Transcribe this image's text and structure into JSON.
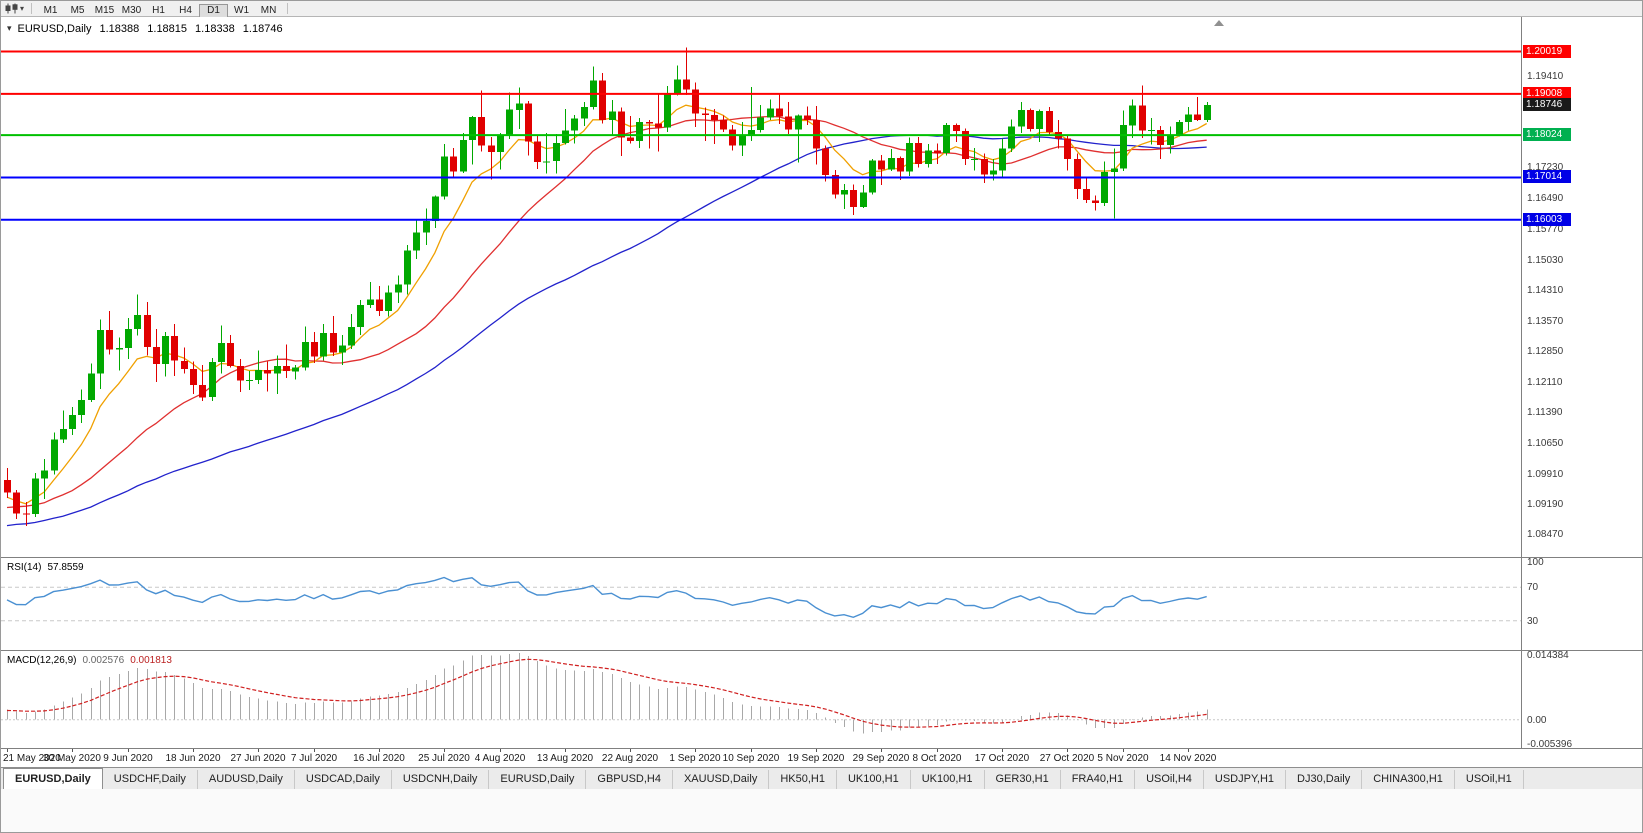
{
  "toolbar": {
    "timeframes": [
      "M1",
      "M5",
      "M15",
      "M30",
      "H1",
      "H4",
      "D1",
      "W1",
      "MN"
    ],
    "active_timeframe": "D1"
  },
  "main_pane": {
    "symbol": "EURUSD,Daily",
    "open": "1.18388",
    "high": "1.18815",
    "low": "1.18338",
    "close": "1.18746"
  },
  "rsi_pane": {
    "label": "RSI(14)",
    "value": "57.8559"
  },
  "macd_pane": {
    "label": "MACD(12,26,9)",
    "value1": "0.002576",
    "value2": "0.001813"
  },
  "tabs": {
    "active_index": 0,
    "items": [
      "EURUSD,Daily",
      "USDCHF,Daily",
      "AUDUSD,Daily",
      "USDCAD,Daily",
      "USDCNH,Daily",
      "EURUSD,Daily",
      "GBPUSD,H4",
      "XAUUSD,Daily",
      "HK50,H1",
      "UK100,H1",
      "UK100,H1",
      "GER30,H1",
      "FRA40,H1",
      "USOil,H4",
      "USDJPY,H1",
      "DJ30,Daily",
      "CHINA300,H1",
      "USOil,H1"
    ]
  },
  "colors": {
    "bull": "#00A800",
    "bear": "#E00000",
    "axis_text": "#3a3a3a",
    "pane_border": "#808080"
  },
  "chart_data": {
    "type": "candlestick",
    "title": "EURUSD,Daily",
    "x_tick_labels": [
      "21 May 2020",
      "30 May 2020",
      "9 Jun 2020",
      "18 Jun 2020",
      "27 Jun 2020",
      "7 Jul 2020",
      "16 Jul 2020",
      "25 Jul 2020",
      "4 Aug 2020",
      "13 Aug 2020",
      "22 Aug 2020",
      "1 Sep 2020",
      "10 Sep 2020",
      "19 Sep 2020",
      "29 Sep 2020",
      "8 Oct 2020",
      "17 Oct 2020",
      "27 Oct 2020",
      "5 Nov 2020",
      "14 Nov 2020"
    ],
    "y_axis": {
      "range": [
        1.081,
        1.207
      ],
      "visible_ticks": [
        "1.19410",
        "1.17230",
        "1.16490",
        "1.15770",
        "1.15030",
        "1.14310",
        "1.13570",
        "1.12850",
        "1.12110",
        "1.11390",
        "1.10650",
        "1.09910",
        "1.09190",
        "1.08470"
      ]
    },
    "candles_ohlc": [
      [
        1.098,
        1.1008,
        1.0936,
        1.095
      ],
      [
        1.095,
        1.0956,
        1.0886,
        1.09
      ],
      [
        1.09,
        1.0927,
        1.087,
        1.0898
      ],
      [
        1.0898,
        1.0996,
        1.0891,
        1.0983
      ],
      [
        1.0983,
        1.103,
        1.0934,
        1.1002
      ],
      [
        1.1002,
        1.1093,
        1.0992,
        1.1076
      ],
      [
        1.1076,
        1.1145,
        1.1068,
        1.1101
      ],
      [
        1.1101,
        1.1154,
        1.1087,
        1.1134
      ],
      [
        1.1134,
        1.1195,
        1.1115,
        1.117
      ],
      [
        1.117,
        1.1257,
        1.1166,
        1.1234
      ],
      [
        1.1234,
        1.1362,
        1.1196,
        1.1337
      ],
      [
        1.1337,
        1.1383,
        1.1279,
        1.1291
      ],
      [
        1.1291,
        1.132,
        1.1241,
        1.1294
      ],
      [
        1.1294,
        1.1366,
        1.1268,
        1.134
      ],
      [
        1.134,
        1.1422,
        1.1324,
        1.1373
      ],
      [
        1.1373,
        1.1404,
        1.1277,
        1.1297
      ],
      [
        1.1297,
        1.134,
        1.1213,
        1.1256
      ],
      [
        1.1256,
        1.1333,
        1.1227,
        1.1323
      ],
      [
        1.1323,
        1.1352,
        1.1228,
        1.1264
      ],
      [
        1.1264,
        1.1296,
        1.1233,
        1.1244
      ],
      [
        1.1244,
        1.1262,
        1.1185,
        1.1206
      ],
      [
        1.1206,
        1.1254,
        1.1168,
        1.1177
      ],
      [
        1.1177,
        1.127,
        1.1168,
        1.1261
      ],
      [
        1.1261,
        1.1348,
        1.1233,
        1.1306
      ],
      [
        1.1306,
        1.1326,
        1.1248,
        1.1251
      ],
      [
        1.1251,
        1.1268,
        1.119,
        1.1217
      ],
      [
        1.1217,
        1.1239,
        1.1194,
        1.1218
      ],
      [
        1.1218,
        1.1288,
        1.1208,
        1.1242
      ],
      [
        1.1242,
        1.1262,
        1.1191,
        1.1234
      ],
      [
        1.1234,
        1.1277,
        1.1185,
        1.1251
      ],
      [
        1.1251,
        1.1303,
        1.1223,
        1.1239
      ],
      [
        1.1239,
        1.1254,
        1.1219,
        1.1248
      ],
      [
        1.1248,
        1.1346,
        1.1241,
        1.1309
      ],
      [
        1.1309,
        1.1333,
        1.1259,
        1.1274
      ],
      [
        1.1274,
        1.1352,
        1.1265,
        1.133
      ],
      [
        1.133,
        1.1371,
        1.1275,
        1.1284
      ],
      [
        1.1284,
        1.1325,
        1.1254,
        1.13
      ],
      [
        1.13,
        1.1375,
        1.1292,
        1.1344
      ],
      [
        1.1344,
        1.1409,
        1.1325,
        1.1397
      ],
      [
        1.1397,
        1.1452,
        1.139,
        1.141
      ],
      [
        1.141,
        1.1442,
        1.1371,
        1.1383
      ],
      [
        1.1383,
        1.1444,
        1.137,
        1.1427
      ],
      [
        1.1427,
        1.1468,
        1.1402,
        1.1446
      ],
      [
        1.1446,
        1.154,
        1.1422,
        1.1527
      ],
      [
        1.1527,
        1.1601,
        1.1507,
        1.157
      ],
      [
        1.157,
        1.1627,
        1.154,
        1.1598
      ],
      [
        1.1598,
        1.1658,
        1.1581,
        1.1656
      ],
      [
        1.1656,
        1.1781,
        1.1649,
        1.1752
      ],
      [
        1.1752,
        1.1772,
        1.17,
        1.1716
      ],
      [
        1.1716,
        1.1807,
        1.1712,
        1.1791
      ],
      [
        1.1791,
        1.1848,
        1.1732,
        1.1846
      ],
      [
        1.1846,
        1.1909,
        1.1763,
        1.1778
      ],
      [
        1.1778,
        1.1798,
        1.1696,
        1.1762
      ],
      [
        1.1762,
        1.1807,
        1.172,
        1.1803
      ],
      [
        1.1803,
        1.1904,
        1.1793,
        1.1863
      ],
      [
        1.1863,
        1.1916,
        1.1817,
        1.1878
      ],
      [
        1.1878,
        1.1884,
        1.1754,
        1.1787
      ],
      [
        1.1787,
        1.18,
        1.1722,
        1.1738
      ],
      [
        1.1738,
        1.1807,
        1.1711,
        1.174
      ],
      [
        1.174,
        1.1805,
        1.1711,
        1.1784
      ],
      [
        1.1784,
        1.1865,
        1.178,
        1.1813
      ],
      [
        1.1813,
        1.1851,
        1.1782,
        1.1842
      ],
      [
        1.1842,
        1.1882,
        1.1824,
        1.187
      ],
      [
        1.187,
        1.1966,
        1.1863,
        1.1933
      ],
      [
        1.1933,
        1.1951,
        1.183,
        1.1839
      ],
      [
        1.1839,
        1.1886,
        1.1803,
        1.1859
      ],
      [
        1.1859,
        1.1868,
        1.1753,
        1.1797
      ],
      [
        1.1797,
        1.1848,
        1.1782,
        1.1789
      ],
      [
        1.1789,
        1.1843,
        1.1772,
        1.1834
      ],
      [
        1.1834,
        1.1839,
        1.177,
        1.183
      ],
      [
        1.183,
        1.19,
        1.1763,
        1.1821
      ],
      [
        1.1821,
        1.192,
        1.181,
        1.1903
      ],
      [
        1.1903,
        1.1968,
        1.1897,
        1.1935
      ],
      [
        1.1935,
        1.2011,
        1.1898,
        1.1911
      ],
      [
        1.1911,
        1.1928,
        1.1822,
        1.1854
      ],
      [
        1.1854,
        1.1868,
        1.1789,
        1.185
      ],
      [
        1.185,
        1.1865,
        1.1781,
        1.1839
      ],
      [
        1.1839,
        1.1849,
        1.181,
        1.1816
      ],
      [
        1.1816,
        1.1827,
        1.1766,
        1.1778
      ],
      [
        1.1778,
        1.1834,
        1.1753,
        1.1801
      ],
      [
        1.1801,
        1.1917,
        1.1789,
        1.1815
      ],
      [
        1.1815,
        1.1874,
        1.1809,
        1.1845
      ],
      [
        1.1845,
        1.1888,
        1.1839,
        1.1866
      ],
      [
        1.1866,
        1.19,
        1.1829,
        1.1847
      ],
      [
        1.1847,
        1.1882,
        1.1805,
        1.1816
      ],
      [
        1.1816,
        1.1852,
        1.1737,
        1.1849
      ],
      [
        1.1849,
        1.1871,
        1.1827,
        1.1838
      ],
      [
        1.1838,
        1.1872,
        1.1732,
        1.1771
      ],
      [
        1.1771,
        1.1778,
        1.1692,
        1.1707
      ],
      [
        1.1707,
        1.1719,
        1.1651,
        1.1661
      ],
      [
        1.1661,
        1.1686,
        1.1626,
        1.1672
      ],
      [
        1.1672,
        1.1685,
        1.1612,
        1.1631
      ],
      [
        1.1631,
        1.1683,
        1.1628,
        1.1665
      ],
      [
        1.1665,
        1.1745,
        1.1661,
        1.1742
      ],
      [
        1.1742,
        1.1755,
        1.1684,
        1.172
      ],
      [
        1.172,
        1.1769,
        1.1717,
        1.1748
      ],
      [
        1.1748,
        1.1751,
        1.1695,
        1.1716
      ],
      [
        1.1716,
        1.1797,
        1.1705,
        1.1784
      ],
      [
        1.1784,
        1.1798,
        1.1725,
        1.1733
      ],
      [
        1.1733,
        1.1781,
        1.1725,
        1.1766
      ],
      [
        1.1766,
        1.1782,
        1.1733,
        1.176
      ],
      [
        1.176,
        1.1831,
        1.1754,
        1.1826
      ],
      [
        1.1826,
        1.183,
        1.1786,
        1.1812
      ],
      [
        1.1812,
        1.1818,
        1.1731,
        1.1745
      ],
      [
        1.1745,
        1.1772,
        1.1718,
        1.1746
      ],
      [
        1.1746,
        1.1758,
        1.1688,
        1.1708
      ],
      [
        1.1708,
        1.1746,
        1.1694,
        1.1718
      ],
      [
        1.1718,
        1.1794,
        1.1703,
        1.177
      ],
      [
        1.177,
        1.184,
        1.1762,
        1.1823
      ],
      [
        1.1823,
        1.1882,
        1.1807,
        1.1862
      ],
      [
        1.1862,
        1.1866,
        1.1811,
        1.1817
      ],
      [
        1.1817,
        1.1864,
        1.1786,
        1.186
      ],
      [
        1.186,
        1.187,
        1.1801,
        1.181
      ],
      [
        1.181,
        1.1838,
        1.177,
        1.1794
      ],
      [
        1.1794,
        1.18,
        1.1718,
        1.1746
      ],
      [
        1.1746,
        1.1759,
        1.165,
        1.1674
      ],
      [
        1.1674,
        1.1704,
        1.164,
        1.1647
      ],
      [
        1.1647,
        1.1658,
        1.1623,
        1.164
      ],
      [
        1.164,
        1.174,
        1.1633,
        1.1714
      ],
      [
        1.1714,
        1.177,
        1.1603,
        1.1723
      ],
      [
        1.1723,
        1.1861,
        1.1717,
        1.1826
      ],
      [
        1.1826,
        1.1888,
        1.1795,
        1.1873
      ],
      [
        1.1873,
        1.1921,
        1.1795,
        1.1813
      ],
      [
        1.1813,
        1.1843,
        1.178,
        1.1815
      ],
      [
        1.1815,
        1.1824,
        1.1745,
        1.1779
      ],
      [
        1.1779,
        1.1823,
        1.1758,
        1.1804
      ],
      [
        1.1804,
        1.1839,
        1.1799,
        1.1834
      ],
      [
        1.1834,
        1.1869,
        1.1814,
        1.1852
      ],
      [
        1.1852,
        1.1894,
        1.1836,
        1.1839
      ],
      [
        1.18388,
        1.18815,
        1.18338,
        1.18746
      ]
    ],
    "overlays": {
      "horizontal_lines": [
        {
          "price": 1.20019,
          "color": "#FF0000",
          "style": "solid"
        },
        {
          "price": 1.19008,
          "color": "#FF0000",
          "style": "solid"
        },
        {
          "price": 1.18024,
          "color": "#00C000",
          "style": "solid"
        },
        {
          "price": 1.17014,
          "color": "#0000FF",
          "style": "solid"
        },
        {
          "price": 1.16003,
          "color": "#0000FF",
          "style": "solid"
        }
      ],
      "price_tags": [
        {
          "label": "1.20019",
          "color": "#FF0000",
          "current": false
        },
        {
          "label": "1.19008",
          "color": "#FF0000",
          "current": false
        },
        {
          "label": "1.18746",
          "color": "#1A1A1A",
          "current": true
        },
        {
          "label": "1.18024",
          "color": "#00B050",
          "current": false
        },
        {
          "label": "1.17014",
          "color": "#0000E6",
          "current": false
        },
        {
          "label": "1.16003",
          "color": "#0000E6",
          "current": false
        }
      ],
      "moving_averages": [
        {
          "type": "ema",
          "period": 8,
          "color": "#F0A000"
        },
        {
          "type": "sma",
          "period": 21,
          "color": "#E03030"
        },
        {
          "type": "sma",
          "period": 50,
          "color": "#2222CC"
        }
      ],
      "ma_seed": {
        "start": 1.078,
        "end": 1.094,
        "bars": 55,
        "wobble": 0.0035
      }
    },
    "rsi": {
      "label": "RSI(14)",
      "value": "57.8559",
      "period": 14,
      "levels": [
        70,
        30
      ],
      "axis_labels": [
        "100",
        "70",
        "30"
      ],
      "range": [
        0,
        100
      ],
      "line_color": "#4A90D2"
    },
    "macd": {
      "label": "MACD(12,26,9)",
      "values": [
        "0.002576",
        "0.001813"
      ],
      "params": [
        12,
        26,
        9
      ],
      "axis_labels": [
        "0.014384",
        "0.00",
        "-0.005396"
      ],
      "range": [
        -0.005396,
        0.014384
      ],
      "histogram_color": "#A8A8A8",
      "signal_color": "#D02020"
    }
  }
}
